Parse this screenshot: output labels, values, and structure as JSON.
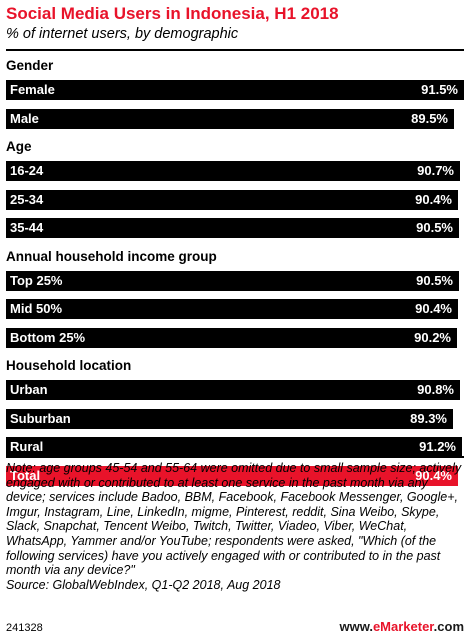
{
  "chart_data": {
    "type": "bar",
    "title": "Social Media Users in Indonesia, H1 2018",
    "subtitle": "% of internet users, by demographic",
    "xlim": [
      0,
      100
    ],
    "groups": [
      {
        "name": "Gender",
        "rows": [
          {
            "label": "Female",
            "value": 91.5,
            "display": "91.5%"
          },
          {
            "label": "Male",
            "value": 89.5,
            "display": "89.5%"
          }
        ]
      },
      {
        "name": "Age",
        "rows": [
          {
            "label": "16-24",
            "value": 90.7,
            "display": "90.7%"
          },
          {
            "label": "25-34",
            "value": 90.4,
            "display": "90.4%"
          },
          {
            "label": "35-44",
            "value": 90.5,
            "display": "90.5%"
          }
        ]
      },
      {
        "name": "Annual household income group",
        "rows": [
          {
            "label": "Top 25%",
            "value": 90.5,
            "display": "90.5%"
          },
          {
            "label": "Mid 50%",
            "value": 90.4,
            "display": "90.4%"
          },
          {
            "label": "Bottom 25%",
            "value": 90.2,
            "display": "90.2%"
          }
        ]
      },
      {
        "name": "Household location",
        "rows": [
          {
            "label": "Urban",
            "value": 90.8,
            "display": "90.8%"
          },
          {
            "label": "Suburban",
            "value": 89.3,
            "display": "89.3%"
          },
          {
            "label": "Rural",
            "value": 91.2,
            "display": "91.2%"
          }
        ]
      }
    ],
    "total": {
      "label": "Total",
      "value": 90.4,
      "display": "90.4%"
    }
  },
  "colors": {
    "bar": "#000000",
    "total_bar": "#e8132a",
    "title": "#e8132a"
  },
  "note": "Note: age groups 45-54 and 55-64 were omitted due to small sample size; actively engaged with or contributed to at least one service in the past month via any device; services include Badoo, BBM, Facebook, Facebook Messenger, Google+, Imgur, Instagram, Line, LinkedIn, migme, Pinterest, reddit, Sina Weibo, Skype, Slack, Snapchat, Tencent Weibo, Twitch, Twitter, Viadeo, Viber, WeChat, WhatsApp, Yammer and/or YouTube; respondents were asked, \"Which (of the following services) have you actively engaged with or contributed to in the past month via any device?\"",
  "source": "Source: GlobalWebIndex, Q1-Q2 2018, Aug 2018",
  "footer": {
    "chart_id": "241328",
    "brand_prefix": "www.",
    "brand_name": "eMarketer",
    "brand_suffix": ".com"
  }
}
